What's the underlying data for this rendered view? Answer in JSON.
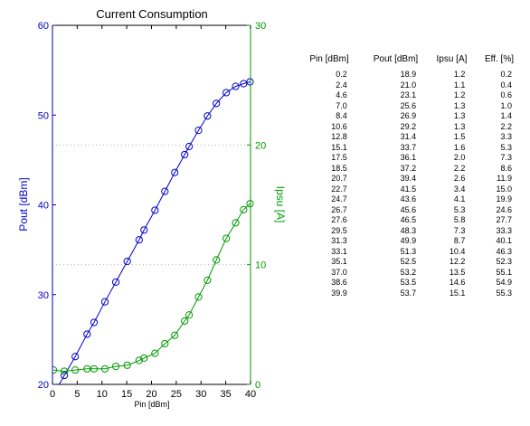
{
  "chart_data": {
    "type": "line",
    "title": "Current Consumption",
    "xlabel": "Pin [dBm]",
    "ylabel_left": "Pout [dBm]",
    "ylabel_right": "Ipsu [A]",
    "xlim": [
      0,
      40
    ],
    "ylim_left": [
      20,
      60
    ],
    "ylim_right": [
      0,
      30
    ],
    "xticks": [
      "0",
      "5",
      "10",
      "15",
      "20",
      "25",
      "30",
      "35",
      "40"
    ],
    "yticks_left": [
      "20",
      "30",
      "40",
      "50",
      "60"
    ],
    "yticks_right": [
      "0",
      "10",
      "20",
      "30"
    ],
    "grid": "horizontal dotted at right-axis major ticks",
    "colors": {
      "pout": "#0000cc",
      "ipsu": "#009900",
      "grid": "#b0b0b0"
    },
    "x": [
      0.2,
      2.4,
      4.6,
      7.0,
      8.4,
      10.6,
      12.8,
      15.1,
      17.5,
      18.5,
      20.7,
      22.7,
      24.7,
      26.7,
      27.6,
      29.5,
      31.3,
      33.1,
      35.1,
      37.0,
      38.6,
      39.9
    ],
    "series": [
      {
        "name": "Pout [dBm]",
        "axis": "left",
        "values": [
          18.9,
          21.0,
          23.1,
          25.6,
          26.9,
          29.2,
          31.4,
          33.7,
          36.1,
          37.2,
          39.4,
          41.5,
          43.6,
          45.6,
          46.5,
          48.3,
          49.9,
          51.3,
          52.5,
          53.2,
          53.5,
          53.7
        ]
      },
      {
        "name": "Ipsu [A]",
        "axis": "right",
        "values": [
          1.2,
          1.1,
          1.2,
          1.3,
          1.3,
          1.3,
          1.5,
          1.6,
          2.0,
          2.2,
          2.6,
          3.4,
          4.1,
          5.3,
          5.8,
          7.3,
          8.7,
          10.4,
          12.2,
          13.5,
          14.6,
          15.1
        ]
      }
    ]
  },
  "table": {
    "headers": [
      "Pin [dBm]",
      "Pout [dBm]",
      "Ipsu [A]",
      "Eff. [%]"
    ],
    "rows": [
      [
        "0.2",
        "18.9",
        "1.2",
        "0.2"
      ],
      [
        "2.4",
        "21.0",
        "1.1",
        "0.4"
      ],
      [
        "4.6",
        "23.1",
        "1.2",
        "0.6"
      ],
      [
        "7.0",
        "25.6",
        "1.3",
        "1.0"
      ],
      [
        "8.4",
        "26.9",
        "1.3",
        "1.4"
      ],
      [
        "10.6",
        "29.2",
        "1.3",
        "2.2"
      ],
      [
        "12.8",
        "31.4",
        "1.5",
        "3.3"
      ],
      [
        "15.1",
        "33.7",
        "1.6",
        "5.3"
      ],
      [
        "17.5",
        "36.1",
        "2.0",
        "7.3"
      ],
      [
        "18.5",
        "37.2",
        "2.2",
        "8.6"
      ],
      [
        "20.7",
        "39.4",
        "2.6",
        "11.9"
      ],
      [
        "22.7",
        "41.5",
        "3.4",
        "15.0"
      ],
      [
        "24.7",
        "43.6",
        "4.1",
        "19.9"
      ],
      [
        "26.7",
        "45.6",
        "5.3",
        "24.6"
      ],
      [
        "27.6",
        "46.5",
        "5.8",
        "27.7"
      ],
      [
        "29.5",
        "48.3",
        "7.3",
        "33.3"
      ],
      [
        "31.3",
        "49.9",
        "8.7",
        "40.1"
      ],
      [
        "33.1",
        "51.3",
        "10.4",
        "46.3"
      ],
      [
        "35.1",
        "52.5",
        "12.2",
        "52.3"
      ],
      [
        "37.0",
        "53.2",
        "13.5",
        "55.1"
      ],
      [
        "38.6",
        "53.5",
        "14.6",
        "54.9"
      ],
      [
        "39.9",
        "53.7",
        "15.1",
        "55.3"
      ]
    ]
  }
}
